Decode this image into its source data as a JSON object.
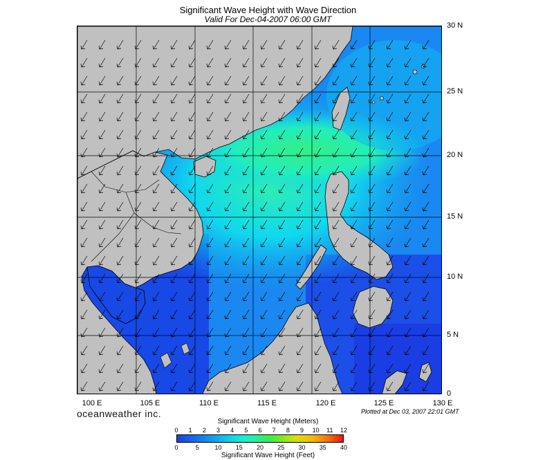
{
  "header": {
    "title": "Significant Wave Height with Wave Direction",
    "subtitle": "Valid For Dec-04-2007 06:00 GMT"
  },
  "map": {
    "lat_labels": [
      "30 N",
      "25 N",
      "20 N",
      "15 N",
      "10 N",
      "5 N",
      "0"
    ],
    "lon_labels": [
      "100 E",
      "105 E",
      "110 E",
      "115 E",
      "120 E",
      "125 E",
      "130 E"
    ],
    "colors": {
      "land": "#c0c0c0",
      "deep_blue": "#1c3ee8",
      "cyan": "#08d2f0",
      "green": "#22f29a"
    }
  },
  "footer": {
    "brand": "oceanweather inc.",
    "plotted": "Plotted at Dec 03, 2007 22:01 GMT"
  },
  "legend": {
    "meters_title": "Significant Wave Height (Meters)",
    "feet_title": "Significant Wave Height (Feet)",
    "meters_ticks": [
      "0",
      "1",
      "2",
      "3",
      "4",
      "5",
      "6",
      "7",
      "8",
      "9",
      "10",
      "11",
      "12"
    ],
    "feet_ticks": [
      "0",
      "5",
      "10",
      "15",
      "20",
      "25",
      "30",
      "35",
      "40"
    ]
  }
}
